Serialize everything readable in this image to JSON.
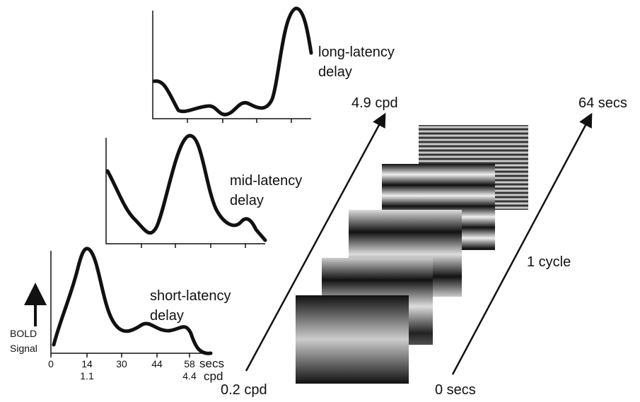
{
  "panels": [
    {
      "label": [
        "long-latency",
        "delay"
      ]
    },
    {
      "label": [
        "mid-latency",
        "delay"
      ]
    },
    {
      "label": [
        "short-latency",
        "delay"
      ]
    }
  ],
  "y_axis_label": [
    "BOLD",
    "Signal"
  ],
  "x_axis": {
    "secs_ticks": [
      "0",
      "14",
      "30",
      "44",
      "58"
    ],
    "secs_unit": "secs",
    "cpd_ticks": [
      "1.1",
      "4.4"
    ],
    "cpd_unit": "cpd"
  },
  "frequency_arrow": {
    "start": "0.2 cpd",
    "end": "4.9 cpd"
  },
  "time_arrow": {
    "start": "0 secs",
    "end": "64 secs",
    "label": "1 cycle"
  }
}
